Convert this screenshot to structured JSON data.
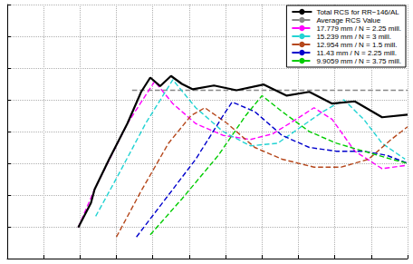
{
  "chart_data": {
    "type": "line",
    "xlim": [
      0,
      11
    ],
    "xticks": [
      0,
      1,
      2,
      3,
      4,
      5,
      6,
      7,
      8,
      9,
      10,
      11
    ],
    "ylim": [
      0,
      8
    ],
    "yticks": [
      0,
      1,
      2,
      3,
      4,
      5,
      6,
      7,
      8
    ],
    "grid": true,
    "tick_labels": false,
    "legend": "upper right",
    "series": [
      {
        "name": "Total RCS for RR−146/AL",
        "color": "#000000",
        "line_style": "solid",
        "x": [
          1.95,
          2.3,
          2.4,
          2.8,
          3.3,
          3.68,
          3.93,
          4.2,
          4.5,
          4.8,
          5.1,
          5.68,
          6.3,
          7.05,
          7.68,
          8.3,
          8.93,
          9.55,
          10.3,
          11
        ],
        "values": [
          0.98,
          1.75,
          2.18,
          3.13,
          4.25,
          5.25,
          5.7,
          5.43,
          5.75,
          5.5,
          5.33,
          5.45,
          5.3,
          5.48,
          5.13,
          5.25,
          4.88,
          4.95,
          4.45,
          4.53
        ]
      },
      {
        "name": "Average RCS Value",
        "color": "#888888",
        "line_style": "dashed",
        "x": [
          3.43,
          11
        ],
        "values": [
          5.3,
          5.3
        ]
      },
      {
        "name": "17.779 mm / N = 2.25 mill.",
        "color": "#ff00ff",
        "line_style": "dashed",
        "x": [
          1.95,
          2.4,
          3.3,
          4.05,
          4.55,
          5.18,
          5.93,
          6.68,
          7.3,
          7.93,
          8.43,
          8.93,
          9.55,
          10.3,
          10.93
        ],
        "values": [
          0.98,
          2.18,
          4.25,
          5.58,
          4.88,
          4.25,
          3.88,
          3.75,
          3.93,
          4.38,
          4.75,
          4.38,
          3.38,
          2.83,
          2.93
        ]
      },
      {
        "name": "15.239 mm / N = 3 mill.",
        "color": "#22d3d3",
        "line_style": "dashed",
        "x": [
          2.43,
          3.05,
          3.8,
          4.55,
          5.18,
          5.93,
          6.68,
          7.43,
          8.05,
          8.68,
          9.25,
          9.8,
          10.3,
          10.93
        ],
        "values": [
          1.33,
          2.63,
          4.25,
          5.63,
          4.75,
          4.0,
          3.55,
          3.63,
          4.13,
          4.63,
          5.0,
          4.38,
          3.63,
          3.13
        ]
      },
      {
        "name": "12.954 mm / N = 1.5 mill.",
        "color": "#b5471b",
        "line_style": "dashed",
        "x": [
          3.0,
          3.68,
          4.43,
          5.05,
          5.43,
          6.05,
          6.8,
          7.55,
          8.43,
          9.18,
          9.93,
          10.55,
          11
        ],
        "values": [
          0.68,
          2.13,
          3.63,
          4.5,
          4.75,
          4.25,
          3.5,
          3.13,
          2.88,
          2.88,
          3.13,
          3.75,
          4.15
        ]
      },
      {
        "name": "11.43 mm / N = 2.25 mill.",
        "color": "#0000cc",
        "line_style": "dashed",
        "x": [
          3.55,
          4.43,
          5.18,
          5.93,
          6.18,
          6.8,
          7.55,
          8.3,
          9.05,
          9.8,
          10.43,
          11
        ],
        "values": [
          0.68,
          2.0,
          3.13,
          4.5,
          4.93,
          4.63,
          3.88,
          3.5,
          3.38,
          3.38,
          3.25,
          3.0
        ]
      },
      {
        "name": "9.9059 mm / N = 3.75 mill.",
        "color": "#00cc00",
        "line_style": "dashed",
        "x": [
          3.93,
          4.8,
          5.8,
          6.55,
          7.0,
          7.55,
          8.3,
          9.05,
          9.8,
          10.55,
          11
        ],
        "values": [
          0.75,
          1.88,
          3.25,
          4.5,
          5.13,
          4.63,
          4.0,
          3.63,
          3.38,
          3.13,
          3.0
        ]
      }
    ]
  }
}
